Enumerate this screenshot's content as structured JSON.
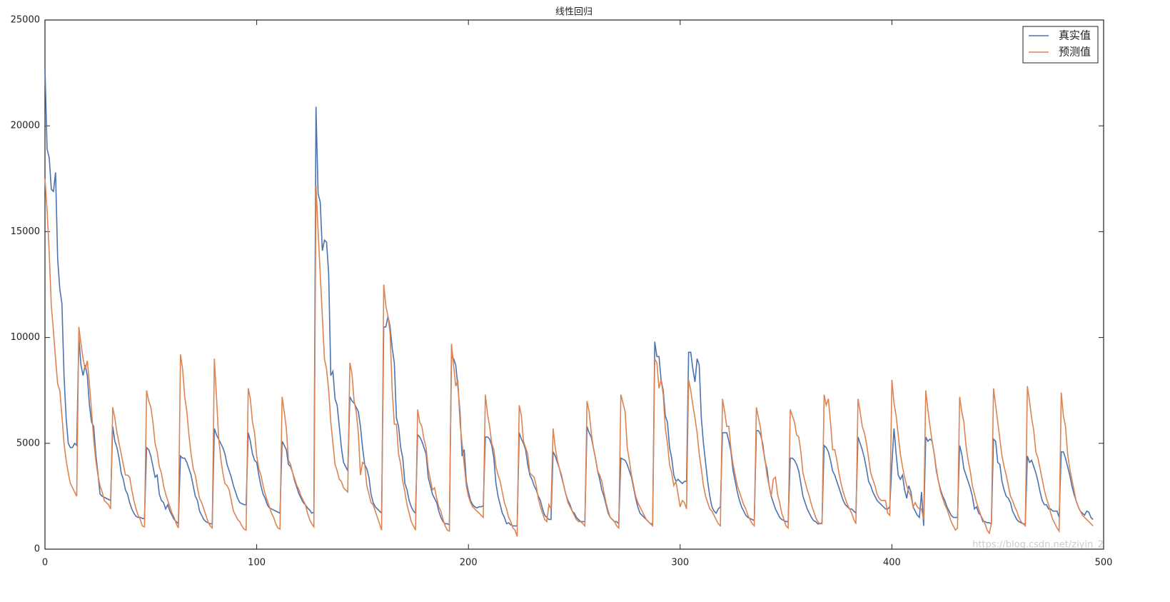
{
  "chart_data": {
    "type": "line",
    "title": "线性回归",
    "xlim": [
      0,
      500
    ],
    "xticks": [
      0,
      100,
      200,
      300,
      400,
      500
    ],
    "ylim": [
      0,
      25000
    ],
    "yticks": [
      0,
      5000,
      10000,
      15000,
      20000,
      25000
    ],
    "grid": false,
    "legend": "upper right",
    "watermark": "https://blog.csdn.net/ziyin_2",
    "series": [
      {
        "name": "真实值",
        "color": "#4c72b0",
        "values": [
          22700,
          18900,
          18500,
          17000,
          16900,
          17800,
          13700,
          12300,
          11600,
          8200,
          6200,
          5000,
          4800,
          4800,
          5000,
          4900,
          10000,
          8700,
          8200,
          8700,
          8200,
          6800,
          6000,
          5800,
          4500,
          3600,
          2600,
          2500,
          2450,
          2400,
          2350,
          2300,
          5800,
          5100,
          4800,
          4300,
          3600,
          3300,
          2800,
          2600,
          2200,
          1900,
          1700,
          1550,
          1500,
          1500,
          1450,
          1450,
          4800,
          4700,
          4400,
          3900,
          3400,
          3500,
          2600,
          2300,
          2200,
          1900,
          2100,
          1800,
          1600,
          1400,
          1300,
          1200,
          4400,
          4300,
          4300,
          4100,
          3800,
          3500,
          3000,
          2500,
          2300,
          1800,
          1600,
          1400,
          1300,
          1250,
          1200,
          1200,
          5700,
          5400,
          5200,
          5000,
          4800,
          4500,
          4000,
          3700,
          3400,
          3000,
          2700,
          2400,
          2200,
          2150,
          2100,
          2100,
          5500,
          5100,
          4500,
          4200,
          4100,
          3500,
          3000,
          2600,
          2400,
          2100,
          1950,
          1900,
          1850,
          1800,
          1750,
          1700,
          5100,
          4900,
          4700,
          4000,
          3900,
          3600,
          3200,
          2900,
          2600,
          2400,
          2200,
          2100,
          1950,
          1850,
          1700,
          1750,
          20900,
          16800,
          16400,
          14100,
          14600,
          14500,
          13000,
          8200,
          8400,
          7100,
          6800,
          5800,
          4800,
          4100,
          3900,
          3700,
          7200,
          7000,
          6900,
          6700,
          6500,
          5800,
          4800,
          4000,
          3800,
          3400,
          2600,
          2200,
          2000,
          1900,
          1800,
          1700,
          10500,
          10500,
          11000,
          10500,
          9500,
          8800,
          6200,
          5800,
          4800,
          4300,
          3100,
          2800,
          2300,
          2000,
          1800,
          1700,
          5400,
          5300,
          5100,
          4800,
          4500,
          3400,
          3000,
          2600,
          2400,
          2200,
          1800,
          1500,
          1300,
          1200,
          1200,
          1150,
          9100,
          9000,
          8700,
          7700,
          6500,
          4400,
          4700,
          3200,
          2700,
          2300,
          2100,
          2000,
          1950,
          2000,
          2000,
          2050,
          5300,
          5300,
          5200,
          4900,
          4300,
          3100,
          2500,
          2100,
          1700,
          1500,
          1200,
          1250,
          1150,
          1100,
          1100,
          1100,
          5500,
          5200,
          5000,
          4700,
          4000,
          3500,
          3300,
          3000,
          2800,
          2500,
          2300,
          1900,
          1600,
          1500,
          1400,
          1400,
          4600,
          4400,
          4100,
          3800,
          3400,
          3000,
          2600,
          2300,
          2100,
          1800,
          1700,
          1500,
          1400,
          1300,
          1300,
          1300,
          5800,
          5500,
          5300,
          4800,
          4300,
          3700,
          3300,
          2800,
          2500,
          2100,
          1700,
          1500,
          1400,
          1300,
          1300,
          1200,
          4300,
          4250,
          4200,
          4000,
          3700,
          3400,
          2900,
          2400,
          2000,
          1700,
          1600,
          1500,
          1400,
          1300,
          1200,
          1200,
          9800,
          9100,
          9100,
          8000,
          7500,
          6300,
          6000,
          4800,
          4300,
          3500,
          3200,
          3300,
          3200,
          3100,
          3200,
          3200,
          9300,
          9300,
          8500,
          7900,
          9000,
          8700,
          6200,
          5000,
          4100,
          3200,
          2500,
          2000,
          1800,
          1700,
          1900,
          2000,
          5500,
          5500,
          5500,
          5100,
          4600,
          3700,
          3200,
          2700,
          2300,
          2000,
          1800,
          1600,
          1500,
          1450,
          1400,
          1350,
          5600,
          5600,
          5400,
          5000,
          4200,
          3800,
          3000,
          2500,
          2200,
          1900,
          1700,
          1500,
          1400,
          1350,
          1300,
          1300,
          4300,
          4300,
          4200,
          4000,
          3700,
          3100,
          2500,
          2200,
          1900,
          1700,
          1500,
          1350,
          1300,
          1200,
          1200,
          1250,
          4900,
          4800,
          4600,
          4200,
          3700,
          3500,
          3200,
          2900,
          2600,
          2300,
          2100,
          2000,
          1900,
          1900,
          1800,
          1700,
          5300,
          5000,
          4700,
          4300,
          3800,
          3200,
          3000,
          2700,
          2500,
          2300,
          2200,
          2100,
          2000,
          1900,
          1900,
          2000,
          4000,
          5700,
          4500,
          3500,
          3300,
          3500,
          2800,
          2400,
          3000,
          2700,
          2000,
          1800,
          1600,
          1500,
          2700,
          1100,
          5300,
          5100,
          5200,
          5100,
          4500,
          3700,
          3200,
          2800,
          2500,
          2300,
          2000,
          1800,
          1600,
          1500,
          1500,
          1500,
          4900,
          4500,
          3800,
          3500,
          3200,
          2900,
          2500,
          1900,
          2000,
          1700,
          1600,
          1300,
          1300,
          1250,
          1250,
          1200,
          5200,
          5100,
          4100,
          4000,
          3200,
          2800,
          2500,
          2400,
          2200,
          1800,
          1600,
          1400,
          1300,
          1250,
          1200,
          1200,
          4400,
          4100,
          4200,
          3900,
          3600,
          3200,
          2700,
          2300,
          2100,
          2100,
          1900,
          1900,
          1800,
          1800,
          1800,
          1500,
          4600,
          4600,
          4300,
          3900,
          3500,
          3000,
          2600,
          2300,
          2000,
          1800,
          1700,
          1600,
          1800,
          1750,
          1500,
          1400
        ]
      },
      {
        "name": "预测值",
        "color": "#dd8452",
        "values": [
          17500,
          16000,
          14000,
          11500,
          10300,
          9000,
          7800,
          7500,
          6300,
          5000,
          4200,
          3600,
          3100,
          2900,
          2700,
          2500,
          10500,
          9700,
          9000,
          8500,
          8900,
          7800,
          6500,
          5200,
          4200,
          3500,
          3000,
          2700,
          2300,
          2200,
          2100,
          1900,
          6700,
          6200,
          5500,
          5000,
          4500,
          4000,
          3500,
          3500,
          3400,
          2800,
          2300,
          1900,
          1600,
          1400,
          1100,
          1050,
          7500,
          7000,
          6700,
          6000,
          5000,
          4600,
          3900,
          3600,
          3000,
          2600,
          2300,
          2000,
          1700,
          1500,
          1200,
          1000,
          9200,
          8500,
          7200,
          6500,
          5400,
          4500,
          3800,
          3500,
          2900,
          2400,
          2200,
          1900,
          1600,
          1300,
          1100,
          1000,
          9000,
          7200,
          5300,
          4300,
          3600,
          3100,
          3000,
          2800,
          2300,
          1800,
          1600,
          1400,
          1300,
          1100,
          950,
          900,
          7600,
          7100,
          6000,
          5500,
          4400,
          3800,
          3500,
          3000,
          2600,
          2300,
          2000,
          1700,
          1500,
          1200,
          1000,
          950,
          7200,
          6500,
          5700,
          4200,
          4000,
          3600,
          3300,
          3000,
          2800,
          2500,
          2300,
          2100,
          1700,
          1400,
          1200,
          1050,
          17200,
          15000,
          13000,
          11000,
          9000,
          8500,
          7500,
          6000,
          5000,
          4000,
          3700,
          3300,
          3200,
          2900,
          2800,
          2700,
          8800,
          8300,
          7000,
          6500,
          5500,
          3500,
          4100,
          4000,
          3000,
          2600,
          2200,
          2100,
          1800,
          1500,
          1200,
          900,
          12500,
          11500,
          11000,
          10200,
          7500,
          5900,
          5900,
          4500,
          4000,
          3200,
          2700,
          2100,
          1700,
          1300,
          1100,
          900,
          6600,
          6000,
          5800,
          5200,
          4800,
          3800,
          3300,
          2800,
          2900,
          2400,
          2000,
          1800,
          1400,
          1100,
          900,
          850,
          9700,
          8700,
          7700,
          8000,
          6000,
          5000,
          4000,
          3000,
          2500,
          2200,
          2000,
          1900,
          1800,
          1700,
          1600,
          1500,
          7300,
          6400,
          5800,
          5000,
          4700,
          3900,
          3500,
          3200,
          2700,
          2200,
          1900,
          1500,
          1300,
          1000,
          900,
          600,
          6800,
          6300,
          5100,
          4800,
          4500,
          3600,
          3500,
          3400,
          3000,
          2400,
          2000,
          1700,
          1400,
          1300,
          2100,
          1900,
          5700,
          4800,
          4200,
          3800,
          3500,
          3000,
          2600,
          2200,
          2000,
          1800,
          1600,
          1400,
          1300,
          1300,
          1200,
          1100,
          7000,
          6500,
          5500,
          4800,
          4300,
          3700,
          3500,
          3200,
          2700,
          2200,
          1800,
          1500,
          1400,
          1300,
          1100,
          1000,
          7300,
          6900,
          6500,
          4800,
          4200,
          3500,
          3000,
          2500,
          2200,
          2000,
          1800,
          1600,
          1400,
          1300,
          1200,
          1100,
          9000,
          8800,
          7600,
          8000,
          7300,
          5700,
          5000,
          4000,
          3600,
          3000,
          3200,
          2600,
          2000,
          2300,
          2200,
          1900,
          8000,
          7500,
          6800,
          6200,
          5500,
          4500,
          3800,
          3000,
          2500,
          2200,
          1900,
          1800,
          1600,
          1400,
          1200,
          1100,
          7100,
          6500,
          5800,
          5800,
          4700,
          4000,
          3500,
          3000,
          2700,
          2400,
          2100,
          1900,
          1600,
          1400,
          1200,
          1100,
          6700,
          6200,
          5700,
          4800,
          4300,
          3500,
          3000,
          2500,
          3300,
          3400,
          2600,
          2200,
          1700,
          1400,
          1100,
          1000,
          6600,
          6300,
          6000,
          5400,
          5300,
          4600,
          3600,
          3200,
          2800,
          2500,
          2100,
          1800,
          1500,
          1300,
          1200,
          1200,
          7300,
          6800,
          7100,
          6000,
          4700,
          4700,
          4200,
          3600,
          3100,
          2700,
          2400,
          2100,
          1900,
          1700,
          1400,
          1200,
          7100,
          6500,
          5800,
          5500,
          5000,
          4300,
          3600,
          3300,
          3000,
          2600,
          2400,
          2300,
          2300,
          2300,
          1700,
          1600,
          8000,
          6900,
          6300,
          5400,
          4500,
          3900,
          3400,
          3000,
          2700,
          2500,
          2000,
          2200,
          2000,
          1900,
          1900,
          1400,
          7500,
          6600,
          5800,
          5100,
          4500,
          3800,
          3200,
          2700,
          2400,
          2100,
          1900,
          1600,
          1300,
          1100,
          900,
          1000,
          7200,
          6500,
          6000,
          4900,
          4200,
          3700,
          3000,
          2600,
          2200,
          1900,
          1600,
          1400,
          1200,
          900,
          750,
          1200,
          7600,
          6800,
          6000,
          5200,
          4400,
          3900,
          3500,
          3000,
          2500,
          2300,
          2000,
          1800,
          1500,
          1300,
          1200,
          1100,
          7700,
          7000,
          6200,
          5600,
          4600,
          4300,
          3800,
          3300,
          2800,
          2400,
          2100,
          1700,
          1400,
          1200,
          1000,
          850,
          7400,
          6300,
          5800,
          4500,
          3800,
          3300,
          2800,
          2300,
          2000,
          1800,
          1600,
          1500,
          1400,
          1300,
          1200,
          1100
        ]
      }
    ]
  }
}
